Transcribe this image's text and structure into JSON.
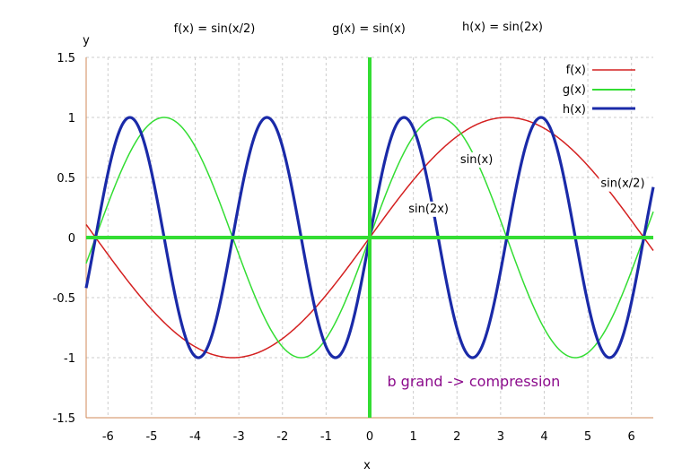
{
  "chart_data": {
    "type": "line",
    "titles": [
      "f(x) = sin(x/2)",
      "g(x) = sin(x)",
      "h(x) = sin(2x)"
    ],
    "xlabel": "x",
    "ylabel": "y",
    "xlim": [
      -6.5,
      6.5
    ],
    "ylim": [
      -1.5,
      1.5
    ],
    "x_ticks": [
      -6,
      -5,
      -4,
      -3,
      -2,
      -1,
      0,
      1,
      2,
      3,
      4,
      5,
      6
    ],
    "y_ticks": [
      1.5,
      1,
      0.5,
      0,
      -0.5,
      -1,
      -1.5
    ],
    "x_tick_labels": [
      "-6",
      "-5",
      "-4",
      "-3",
      "-2",
      "-1",
      "0",
      "1",
      "2",
      "3",
      "4",
      "5",
      "6"
    ],
    "y_tick_labels": [
      "1.5",
      "1",
      "0.5",
      "0",
      "-0.5",
      "-1",
      "-1.5"
    ],
    "grid": true,
    "legend_position": "top-right",
    "series": [
      {
        "name": "f(x)",
        "color": "#d42020",
        "b": 0.5
      },
      {
        "name": "g(x)",
        "color": "#33dd33",
        "b": 1
      },
      {
        "name": "h(x)",
        "color": "#1a2aa8",
        "b": 2
      }
    ],
    "annotations": [
      {
        "text": "sin(x)",
        "x": 2.45,
        "y": 0.62
      },
      {
        "text": "sin(2x)",
        "x": 1.35,
        "y": 0.21
      },
      {
        "text": "sin(x/2)",
        "x": 5.8,
        "y": 0.42
      }
    ],
    "note": "b grand -> compression",
    "note_pos": {
      "x": 0.4,
      "y": -1.24
    }
  }
}
